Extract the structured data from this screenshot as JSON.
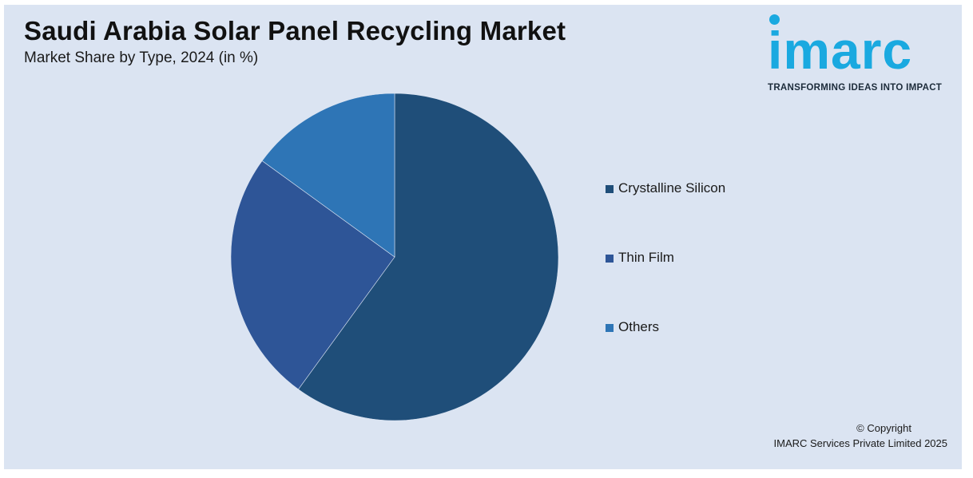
{
  "header": {
    "title": "Saudi Arabia Solar Panel Recycling Market",
    "subtitle": "Market Share by Type, 2024 (in %)"
  },
  "logo": {
    "word": "imarc",
    "tagline": "TRANSFORMING IDEAS INTO IMPACT",
    "color": "#1aa9e0"
  },
  "chart_data": {
    "type": "pie",
    "title": "Saudi Arabia Solar Panel Recycling Market",
    "subtitle": "Market Share by Type, 2024 (in %)",
    "categories": [
      "Crystalline Silicon",
      "Thin Film",
      "Others"
    ],
    "values": [
      60,
      25,
      15
    ],
    "colors": [
      "#1f4e79",
      "#2e5597",
      "#2e75b6"
    ],
    "legend_position": "right"
  },
  "footer": {
    "copyright_line1": "© Copyright",
    "copyright_line2": "IMARC Services Private Limited 2025"
  }
}
